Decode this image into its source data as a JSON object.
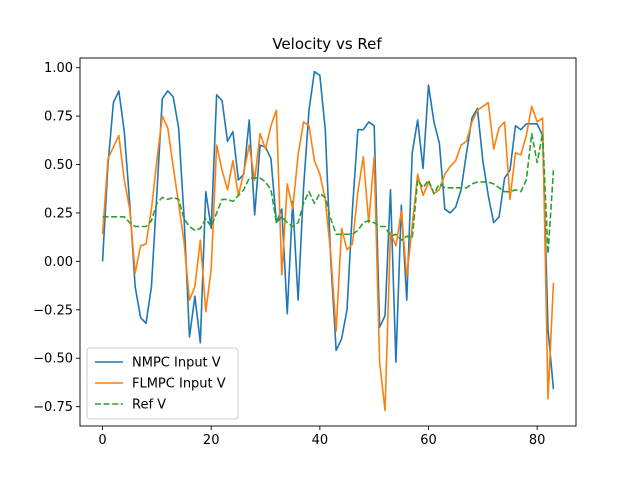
{
  "chart_data": {
    "type": "line",
    "title": "Velocity vs Ref",
    "xlabel": "",
    "ylabel": "",
    "xlim": [
      -4.15,
      87.15
    ],
    "ylim": [
      -0.85,
      1.05
    ],
    "xticks": [
      0,
      20,
      40,
      60,
      80
    ],
    "yticks": [
      -0.75,
      -0.5,
      -0.25,
      0.0,
      0.25,
      0.5,
      0.75,
      1.0
    ],
    "xtick_labels": [
      "0",
      "20",
      "40",
      "60",
      "80"
    ],
    "ytick_labels": [
      "−0.75",
      "−0.50",
      "−0.25",
      "0.00",
      "0.25",
      "0.50",
      "0.75",
      "1.00"
    ],
    "legend_position": "lower-left",
    "series": [
      {
        "name": "NMPC Input V",
        "color": "#1f77b4",
        "dash": "solid",
        "x": [
          0,
          1,
          2,
          3,
          4,
          5,
          6,
          7,
          8,
          9,
          10,
          11,
          12,
          13,
          14,
          15,
          16,
          17,
          18,
          19,
          20,
          21,
          22,
          23,
          24,
          25,
          26,
          27,
          28,
          29,
          30,
          31,
          32,
          33,
          34,
          35,
          36,
          37,
          38,
          39,
          40,
          41,
          42,
          43,
          44,
          45,
          46,
          47,
          48,
          49,
          50,
          51,
          52,
          53,
          54,
          55,
          56,
          57,
          58,
          59,
          60,
          61,
          62,
          63,
          64,
          65,
          66,
          67,
          68,
          69,
          70,
          71,
          72,
          73,
          74,
          75,
          76,
          77,
          78,
          79,
          80,
          81,
          82,
          83
        ],
        "y": [
          0.0,
          0.5,
          0.82,
          0.88,
          0.67,
          0.3,
          -0.13,
          -0.29,
          -0.32,
          -0.13,
          0.35,
          0.84,
          0.88,
          0.85,
          0.69,
          0.23,
          -0.39,
          -0.18,
          -0.42,
          0.36,
          0.17,
          0.86,
          0.83,
          0.62,
          0.67,
          0.42,
          0.45,
          0.73,
          0.24,
          0.6,
          0.59,
          0.53,
          0.2,
          0.27,
          -0.27,
          0.31,
          -0.2,
          0.38,
          0.78,
          0.98,
          0.96,
          0.68,
          0.01,
          -0.46,
          -0.4,
          -0.25,
          0.27,
          0.68,
          0.68,
          0.72,
          0.7,
          -0.34,
          -0.28,
          0.37,
          -0.52,
          0.29,
          -0.2,
          0.56,
          0.73,
          0.48,
          0.91,
          0.72,
          0.61,
          0.27,
          0.25,
          0.28,
          0.37,
          0.56,
          0.74,
          0.79,
          0.52,
          0.34,
          0.2,
          0.23,
          0.43,
          0.47,
          0.7,
          0.68,
          0.71,
          0.71,
          0.71,
          0.65,
          -0.35,
          -0.66
        ]
      },
      {
        "name": "FLMPC Input V",
        "color": "#ff7f0e",
        "dash": "solid",
        "x": [
          0,
          1,
          2,
          3,
          4,
          5,
          6,
          7,
          8,
          9,
          10,
          11,
          12,
          13,
          14,
          15,
          16,
          17,
          18,
          19,
          20,
          21,
          22,
          23,
          24,
          25,
          26,
          27,
          28,
          29,
          30,
          31,
          32,
          33,
          34,
          35,
          36,
          37,
          38,
          39,
          40,
          41,
          42,
          43,
          44,
          45,
          46,
          47,
          48,
          49,
          50,
          51,
          52,
          53,
          54,
          55,
          56,
          57,
          58,
          59,
          60,
          61,
          62,
          63,
          64,
          65,
          66,
          67,
          68,
          69,
          70,
          71,
          72,
          73,
          74,
          75,
          76,
          77,
          78,
          79,
          80,
          81,
          82,
          83
        ],
        "y": [
          0.14,
          0.53,
          0.59,
          0.65,
          0.42,
          0.27,
          -0.06,
          0.08,
          0.09,
          0.27,
          0.52,
          0.75,
          0.69,
          0.49,
          0.3,
          0.1,
          -0.2,
          -0.13,
          0.11,
          -0.26,
          -0.04,
          0.6,
          0.47,
          0.37,
          0.52,
          0.34,
          0.46,
          0.6,
          0.42,
          0.66,
          0.58,
          0.7,
          0.78,
          -0.07,
          0.4,
          0.27,
          0.55,
          0.72,
          0.7,
          0.52,
          0.45,
          0.32,
          0.04,
          -0.36,
          0.17,
          0.06,
          0.09,
          0.36,
          0.54,
          0.2,
          0.54,
          -0.52,
          -0.77,
          0.15,
          0.08,
          0.26,
          -0.08,
          0.18,
          0.45,
          0.34,
          0.41,
          0.35,
          0.37,
          0.45,
          0.49,
          0.52,
          0.6,
          0.62,
          0.72,
          0.78,
          0.8,
          0.82,
          0.58,
          0.69,
          0.72,
          0.32,
          0.56,
          0.55,
          0.65,
          0.8,
          0.72,
          0.74,
          -0.71,
          -0.11
        ]
      },
      {
        "name": "Ref V",
        "color": "#2ca02c",
        "dash": "dashed",
        "x": [
          0,
          1,
          2,
          3,
          4,
          5,
          6,
          7,
          8,
          9,
          10,
          11,
          12,
          13,
          14,
          15,
          16,
          17,
          18,
          19,
          20,
          21,
          22,
          23,
          24,
          25,
          26,
          27,
          28,
          29,
          30,
          31,
          32,
          33,
          34,
          35,
          36,
          37,
          38,
          39,
          40,
          41,
          42,
          43,
          44,
          45,
          46,
          47,
          48,
          49,
          50,
          51,
          52,
          53,
          54,
          55,
          56,
          57,
          58,
          59,
          60,
          61,
          62,
          63,
          64,
          65,
          66,
          67,
          68,
          69,
          70,
          71,
          72,
          73,
          74,
          75,
          76,
          77,
          78,
          79,
          80,
          81,
          82,
          83
        ],
        "y": [
          0.23,
          0.23,
          0.23,
          0.23,
          0.23,
          0.2,
          0.18,
          0.18,
          0.18,
          0.21,
          0.3,
          0.33,
          0.32,
          0.33,
          0.32,
          0.22,
          0.18,
          0.16,
          0.17,
          0.22,
          0.18,
          0.25,
          0.32,
          0.32,
          0.31,
          0.34,
          0.37,
          0.43,
          0.43,
          0.43,
          0.41,
          0.37,
          0.2,
          0.23,
          0.2,
          0.18,
          0.2,
          0.3,
          0.36,
          0.3,
          0.35,
          0.33,
          0.22,
          0.14,
          0.14,
          0.14,
          0.14,
          0.16,
          0.2,
          0.21,
          0.2,
          0.18,
          0.18,
          0.13,
          0.14,
          0.11,
          0.13,
          0.12,
          0.42,
          0.38,
          0.42,
          0.35,
          0.4,
          0.38,
          0.38,
          0.38,
          0.38,
          0.38,
          0.4,
          0.41,
          0.41,
          0.41,
          0.4,
          0.38,
          0.36,
          0.36,
          0.37,
          0.36,
          0.42,
          0.66,
          0.51,
          0.66,
          0.04,
          0.47
        ]
      }
    ]
  }
}
